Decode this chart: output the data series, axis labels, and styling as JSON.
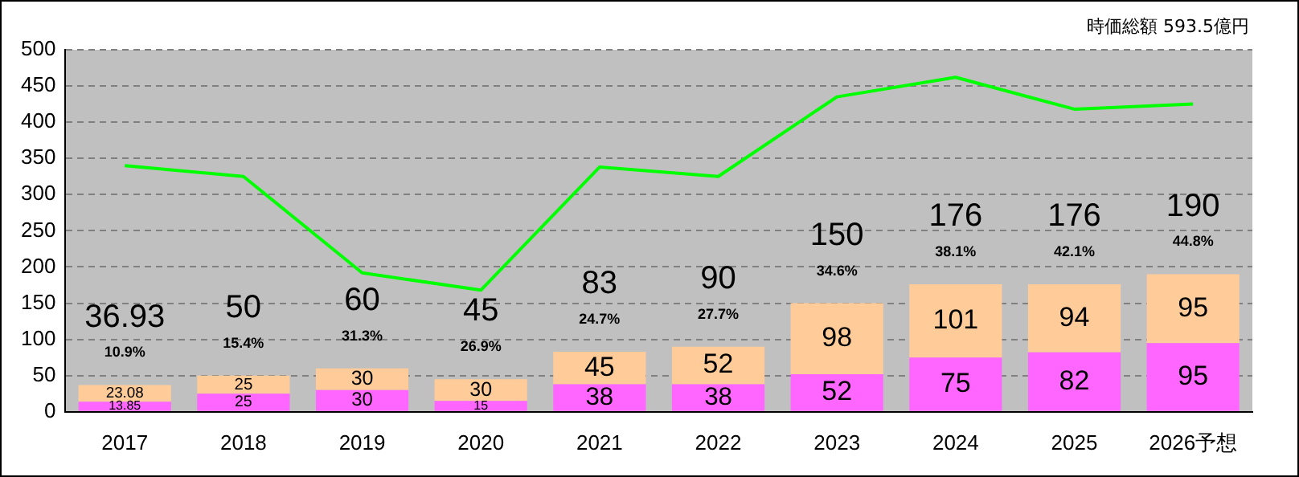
{
  "chart_data": {
    "type": "bar",
    "stacked": true,
    "categories": [
      "2017",
      "2018",
      "2019",
      "2020",
      "2021",
      "2022",
      "2023",
      "2024",
      "2025",
      "2026予想"
    ],
    "series": [
      {
        "color": "#ff66ff",
        "values": [
          13.85,
          25,
          30,
          15,
          38,
          38,
          52,
          75,
          82,
          95
        ],
        "value_labels": [
          "13.85",
          "25",
          "30",
          "15",
          "38",
          "38",
          "52",
          "75",
          "82",
          "95"
        ]
      },
      {
        "color": "#ffcc99",
        "values": [
          23.08,
          25,
          30,
          30,
          45,
          52,
          98,
          101,
          94,
          95
        ],
        "value_labels": [
          "23.08",
          "25",
          "30",
          "30",
          "45",
          "52",
          "98",
          "101",
          "94",
          "95"
        ]
      },
      {
        "type": "line",
        "color": "#00ff00",
        "values": [
          340,
          325,
          192,
          168,
          338,
          325,
          435,
          462,
          418,
          425
        ]
      }
    ],
    "totals": [
      "36.93",
      "50",
      "60",
      "45",
      "83",
      "90",
      "150",
      "176",
      "176",
      "190"
    ],
    "annotations": [
      "時価総額 593.5億円",
      "10.9%",
      "15.4%",
      "31.3%",
      "26.9%",
      "24.7%",
      "27.7%",
      "34.6%",
      "38.1%",
      "42.1%",
      "44.8%"
    ],
    "ylim": [
      0,
      500
    ],
    "yticks": [
      0,
      50,
      100,
      150,
      200,
      250,
      300,
      350,
      400,
      450,
      500
    ],
    "grid": "y",
    "legend": false
  }
}
